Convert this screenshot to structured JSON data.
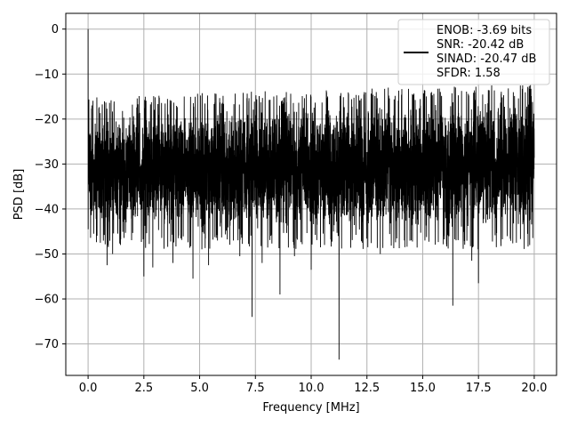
{
  "chart_data": {
    "type": "line",
    "title": "",
    "xlabel": "Frequency [MHz]",
    "ylabel": "PSD [dB]",
    "xlim": [
      -1.0,
      21.0
    ],
    "ylim": [
      -77.0,
      3.5
    ],
    "xticks": [
      0.0,
      2.5,
      5.0,
      7.5,
      10.0,
      12.5,
      15.0,
      17.5,
      20.0
    ],
    "xtick_labels": [
      "0.0",
      "2.5",
      "5.0",
      "7.5",
      "10.0",
      "12.5",
      "15.0",
      "17.5",
      "20.0"
    ],
    "yticks": [
      0,
      -10,
      -20,
      -30,
      -40,
      -50,
      -60,
      -70
    ],
    "ytick_labels": [
      "0",
      "−10",
      "−20",
      "−30",
      "−40",
      "−50",
      "−60",
      "−70"
    ],
    "grid": true,
    "legend_position": "top-right",
    "series": [
      {
        "name": "ENOB: -3.69 bits\nSNR: -20.42 dB\nSINAD: -20.47 dB\nSFDR: 1.58",
        "legend_lines": [
          "ENOB: -3.69 bits",
          "SNR: -20.42 dB",
          "SINAD: -20.47 dB",
          "SFDR: 1.58"
        ],
        "color": "#000000",
        "x_range": [
          0.0,
          20.0
        ],
        "noise_floor_band_db": [
          -45.0,
          -14.0
        ],
        "spikes": [
          {
            "x": 0.0,
            "y": 0.0
          },
          {
            "x": 0.25,
            "y": -45.5
          },
          {
            "x": 0.55,
            "y": -47.5
          },
          {
            "x": 0.85,
            "y": -52.5
          },
          {
            "x": 1.1,
            "y": -50.0
          },
          {
            "x": 1.45,
            "y": -48.0
          },
          {
            "x": 2.5,
            "y": -55.0
          },
          {
            "x": 2.9,
            "y": -53.0
          },
          {
            "x": 3.8,
            "y": -52.0
          },
          {
            "x": 4.7,
            "y": -55.5
          },
          {
            "x": 5.4,
            "y": -52.5
          },
          {
            "x": 5.8,
            "y": -47.0
          },
          {
            "x": 6.8,
            "y": -50.5
          },
          {
            "x": 7.35,
            "y": -64.0
          },
          {
            "x": 7.8,
            "y": -52.0
          },
          {
            "x": 8.6,
            "y": -59.0
          },
          {
            "x": 9.25,
            "y": -50.5
          },
          {
            "x": 10.0,
            "y": -53.5
          },
          {
            "x": 10.6,
            "y": -48.0
          },
          {
            "x": 11.25,
            "y": -73.5
          },
          {
            "x": 12.3,
            "y": -47.5
          },
          {
            "x": 13.1,
            "y": -50.0
          },
          {
            "x": 14.2,
            "y": -48.5
          },
          {
            "x": 15.1,
            "y": -47.0
          },
          {
            "x": 16.35,
            "y": -61.5
          },
          {
            "x": 17.2,
            "y": -51.5
          },
          {
            "x": 17.5,
            "y": -56.5
          },
          {
            "x": 18.3,
            "y": -48.5
          },
          {
            "x": 19.2,
            "y": -47.5
          },
          {
            "x": 19.5,
            "y": -43.0
          }
        ]
      }
    ]
  }
}
